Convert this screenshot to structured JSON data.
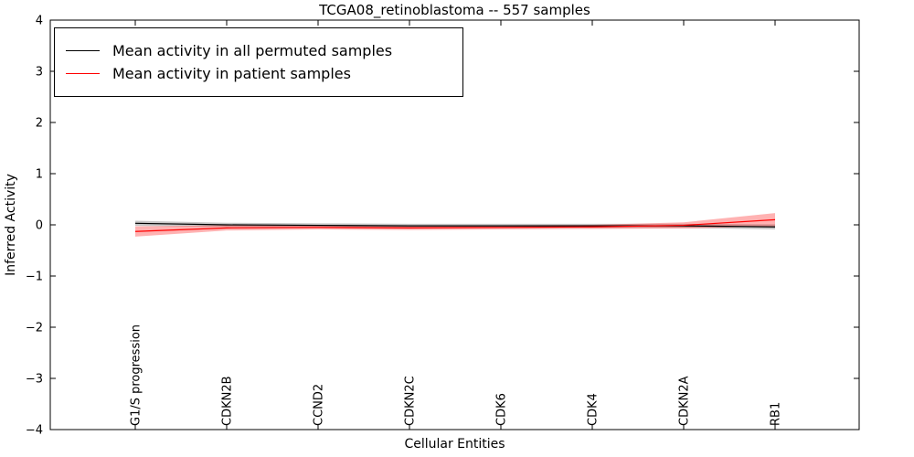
{
  "chart_data": {
    "type": "line",
    "title": "TCGA08_retinoblastoma -- 557 samples",
    "xlabel": "Cellular Entities",
    "ylabel": "Inferred Activity",
    "ylim": [
      -4,
      4
    ],
    "yticks": [
      -4,
      -3,
      -2,
      -1,
      0,
      1,
      2,
      3,
      4
    ],
    "ytick_labels": [
      "−4",
      "−3",
      "−2",
      "−1",
      "0",
      "1",
      "2",
      "3",
      "4"
    ],
    "grid": false,
    "legend_position": "upper left",
    "background": "#ffffff",
    "frame_color": "#000000",
    "categories": [
      "G1/S progression",
      "CDKN2B",
      "CCND2",
      "CDKN2C",
      "CDK6",
      "CDK4",
      "CDKN2A",
      "RB1"
    ],
    "series": [
      {
        "name": "Mean activity in all permuted samples",
        "color": "#000000",
        "band_color": "rgba(0,0,0,0.22)",
        "values": [
          0.03,
          0.0,
          -0.01,
          -0.02,
          -0.02,
          -0.02,
          -0.02,
          -0.04
        ],
        "band_halfwidth": [
          0.05,
          0.04,
          0.04,
          0.04,
          0.04,
          0.04,
          0.04,
          0.05
        ]
      },
      {
        "name": "Mean activity in patient samples",
        "color": "#ff0000",
        "band_color": "rgba(255,0,0,0.30)",
        "values": [
          -0.13,
          -0.06,
          -0.05,
          -0.06,
          -0.05,
          -0.04,
          -0.01,
          0.1
        ],
        "band_halfwidth": [
          0.1,
          0.05,
          0.04,
          0.04,
          0.04,
          0.04,
          0.06,
          0.13
        ]
      }
    ]
  }
}
